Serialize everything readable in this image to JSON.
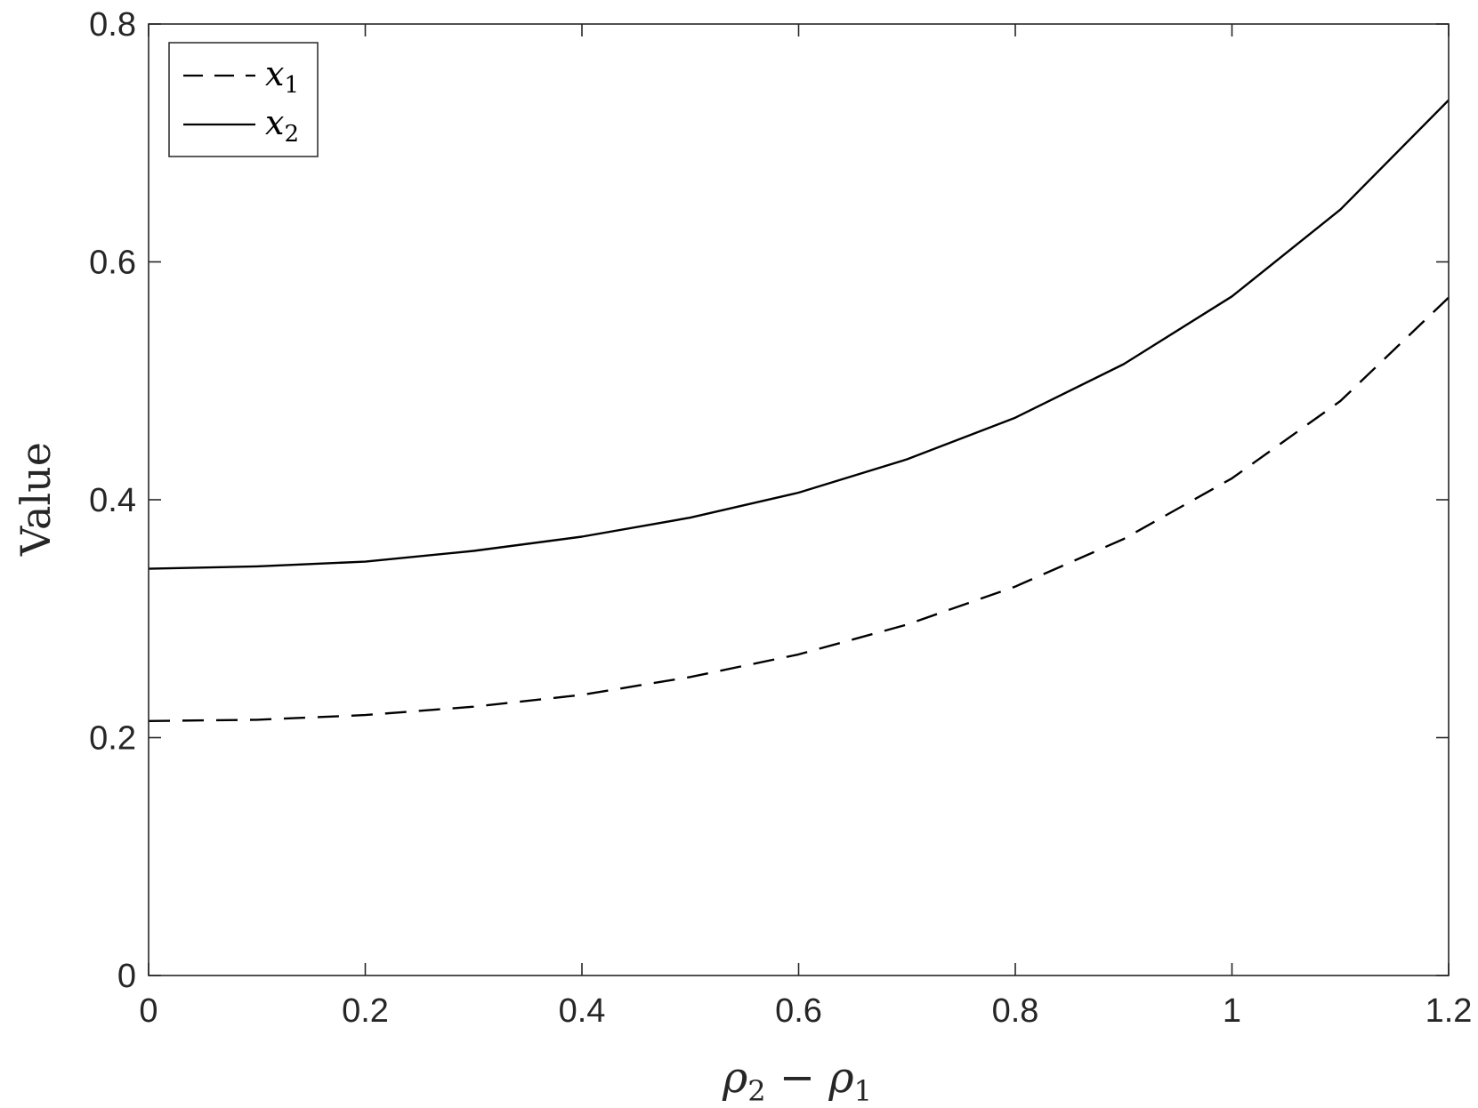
{
  "chart_data": {
    "type": "line",
    "xlabel": {
      "base": "ρ",
      "sub1": "2",
      "op": " − ",
      "base2": "ρ",
      "sub2": "1"
    },
    "ylabel": "Value",
    "xlim": [
      0,
      1.2
    ],
    "ylim": [
      0,
      0.8
    ],
    "xticks": [
      0,
      0.2,
      0.4,
      0.6,
      0.8,
      1,
      1.2
    ],
    "xtick_labels": [
      "0",
      "0.2",
      "0.4",
      "0.6",
      "0.8",
      "1",
      "1.2"
    ],
    "yticks": [
      0,
      0.2,
      0.4,
      0.6,
      0.8
    ],
    "ytick_labels": [
      "0",
      "0.2",
      "0.4",
      "0.6",
      "0.8"
    ],
    "grid": false,
    "legend_position": "top-left",
    "x": [
      0,
      0.1,
      0.2,
      0.3,
      0.4,
      0.5,
      0.6,
      0.7,
      0.8,
      0.9,
      1.0,
      1.1,
      1.2
    ],
    "series": [
      {
        "name": "x1",
        "name_base": "x",
        "name_sub": "1",
        "style": "dashed",
        "values": [
          0.214,
          0.215,
          0.219,
          0.226,
          0.236,
          0.251,
          0.27,
          0.295,
          0.327,
          0.367,
          0.418,
          0.483,
          0.57
        ]
      },
      {
        "name": "x2",
        "name_base": "x",
        "name_sub": "2",
        "style": "solid",
        "values": [
          0.342,
          0.344,
          0.348,
          0.357,
          0.369,
          0.385,
          0.406,
          0.434,
          0.469,
          0.514,
          0.571,
          0.644,
          0.736
        ]
      }
    ],
    "colors": {
      "line": "#000000",
      "axis": "#262626"
    }
  }
}
